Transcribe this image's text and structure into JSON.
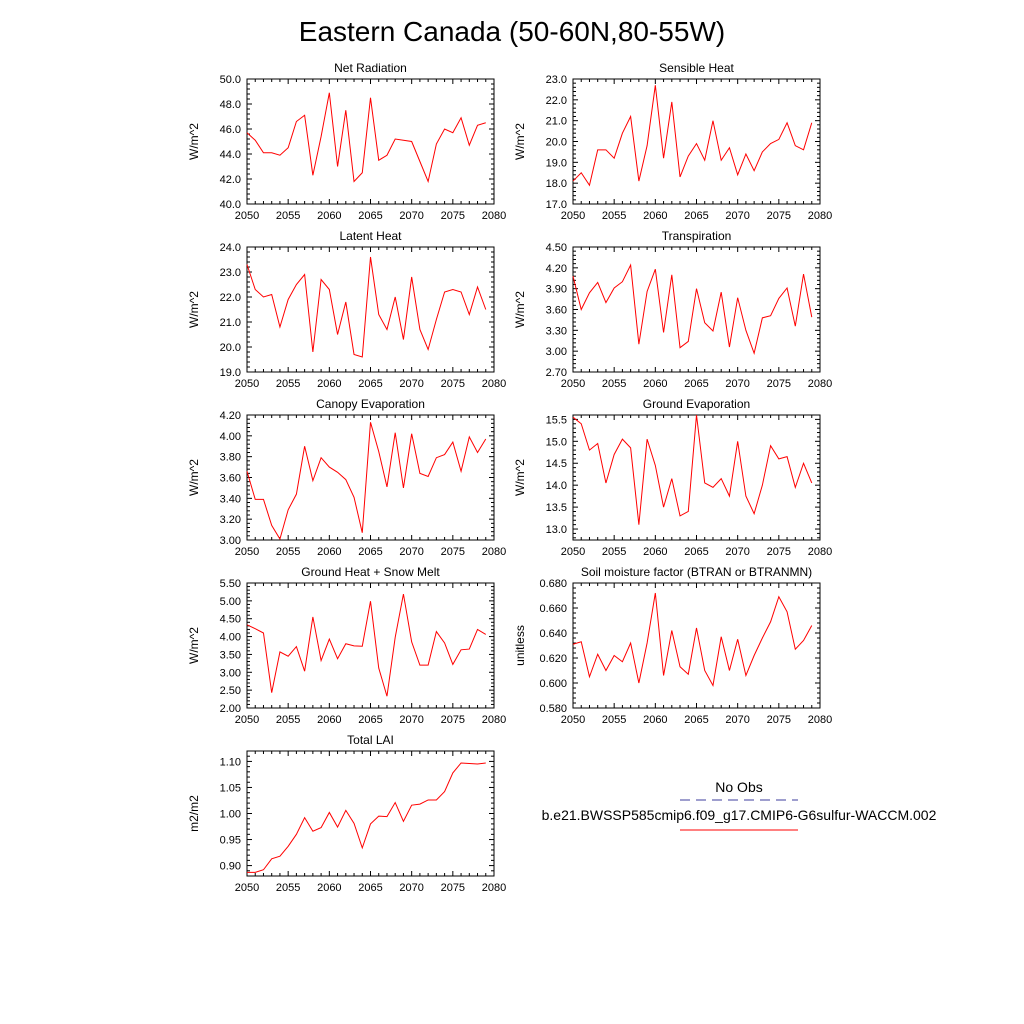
{
  "title": "Eastern Canada (50-60N,80-55W)",
  "legend": {
    "obs_label": "No Obs",
    "case_label": "b.e21.BWSSP585cmip6.f09_g17.CMIP6-G6sulfur-WACCM.002",
    "obs_color": "#3d3d9e",
    "case_color": "#ff0000"
  },
  "chart_data": [
    {
      "type": "line",
      "title": "Net Radiation",
      "ylabel": "W/m^2",
      "xlim": [
        2050,
        2080
      ],
      "ylim": [
        40,
        50
      ],
      "xticks": [
        "2050",
        "2055",
        "2060",
        "2065",
        "2070",
        "2075",
        "2080"
      ],
      "yticks": [
        "40.0",
        "42.0",
        "44.0",
        "46.0",
        "48.0",
        "50.0"
      ],
      "x": [
        2050,
        2051,
        2052,
        2053,
        2054,
        2055,
        2056,
        2057,
        2058,
        2059,
        2060,
        2061,
        2062,
        2063,
        2064,
        2065,
        2066,
        2067,
        2068,
        2069,
        2070,
        2071,
        2072,
        2073,
        2074,
        2075,
        2076,
        2077,
        2078,
        2079
      ],
      "series": [
        {
          "color": "#ff0000",
          "values": [
            45.7,
            45.1,
            44.1,
            44.1,
            43.9,
            44.5,
            46.6,
            47.1,
            42.3,
            45.4,
            48.9,
            43.0,
            47.5,
            41.8,
            42.5,
            48.5,
            43.5,
            43.9,
            45.2,
            45.1,
            45.0,
            43.4,
            41.8,
            44.8,
            46.0,
            45.7,
            46.9,
            44.7,
            46.3,
            46.5
          ]
        }
      ]
    },
    {
      "type": "line",
      "title": "Sensible Heat",
      "ylabel": "W/m^2",
      "xlim": [
        2050,
        2080
      ],
      "ylim": [
        17,
        23
      ],
      "xticks": [
        "2050",
        "2055",
        "2060",
        "2065",
        "2070",
        "2075",
        "2080"
      ],
      "yticks": [
        "17.0",
        "18.0",
        "19.0",
        "20.0",
        "21.0",
        "22.0",
        "23.0"
      ],
      "x": [
        2050,
        2051,
        2052,
        2053,
        2054,
        2055,
        2056,
        2057,
        2058,
        2059,
        2060,
        2061,
        2062,
        2063,
        2064,
        2065,
        2066,
        2067,
        2068,
        2069,
        2070,
        2071,
        2072,
        2073,
        2074,
        2075,
        2076,
        2077,
        2078,
        2079
      ],
      "series": [
        {
          "color": "#ff0000",
          "values": [
            18.1,
            18.5,
            17.9,
            19.6,
            19.6,
            19.2,
            20.4,
            21.2,
            18.1,
            19.8,
            22.7,
            19.2,
            21.9,
            18.3,
            19.3,
            19.9,
            19.1,
            21.0,
            19.1,
            19.7,
            18.4,
            19.4,
            18.6,
            19.5,
            19.9,
            20.1,
            20.9,
            19.8,
            19.6,
            20.9
          ]
        }
      ]
    },
    {
      "type": "line",
      "title": "Latent Heat",
      "ylabel": "W/m^2",
      "xlim": [
        2050,
        2080
      ],
      "ylim": [
        19,
        24
      ],
      "xticks": [
        "2050",
        "2055",
        "2060",
        "2065",
        "2070",
        "2075",
        "2080"
      ],
      "yticks": [
        "19.0",
        "20.0",
        "21.0",
        "22.0",
        "23.0",
        "24.0"
      ],
      "x": [
        2050,
        2051,
        2052,
        2053,
        2054,
        2055,
        2056,
        2057,
        2058,
        2059,
        2060,
        2061,
        2062,
        2063,
        2064,
        2065,
        2066,
        2067,
        2068,
        2069,
        2070,
        2071,
        2072,
        2073,
        2074,
        2075,
        2076,
        2077,
        2078,
        2079
      ],
      "series": [
        {
          "color": "#ff0000",
          "values": [
            23.3,
            22.3,
            22.0,
            22.1,
            20.8,
            21.9,
            22.5,
            22.9,
            19.8,
            22.7,
            22.3,
            20.5,
            21.8,
            19.7,
            19.6,
            23.6,
            21.3,
            20.7,
            22.0,
            20.3,
            22.8,
            20.7,
            19.9,
            21.1,
            22.2,
            22.3,
            22.2,
            21.3,
            22.4,
            21.5
          ]
        }
      ]
    },
    {
      "type": "line",
      "title": "Transpiration",
      "ylabel": "W/m^2",
      "xlim": [
        2050,
        2080
      ],
      "ylim": [
        2.7,
        4.5
      ],
      "xticks": [
        "2050",
        "2055",
        "2060",
        "2065",
        "2070",
        "2075",
        "2080"
      ],
      "yticks": [
        "2.70",
        "3.00",
        "3.30",
        "3.60",
        "3.90",
        "4.20",
        "4.50"
      ],
      "x": [
        2050,
        2051,
        2052,
        2053,
        2054,
        2055,
        2056,
        2057,
        2058,
        2059,
        2060,
        2061,
        2062,
        2063,
        2064,
        2065,
        2066,
        2067,
        2068,
        2069,
        2070,
        2071,
        2072,
        2073,
        2074,
        2075,
        2076,
        2077,
        2078,
        2079
      ],
      "series": [
        {
          "color": "#ff0000",
          "values": [
            4.08,
            3.6,
            3.84,
            3.99,
            3.7,
            3.91,
            4.0,
            4.24,
            3.1,
            3.86,
            4.18,
            3.27,
            4.1,
            3.05,
            3.14,
            3.9,
            3.41,
            3.29,
            3.85,
            3.06,
            3.77,
            3.3,
            2.97,
            3.48,
            3.51,
            3.76,
            3.91,
            3.36,
            4.11,
            3.49
          ]
        }
      ]
    },
    {
      "type": "line",
      "title": "Canopy Evaporation",
      "ylabel": "W/m^2",
      "xlim": [
        2050,
        2080
      ],
      "ylim": [
        3.0,
        4.2
      ],
      "xticks": [
        "2050",
        "2055",
        "2060",
        "2065",
        "2070",
        "2075",
        "2080"
      ],
      "yticks": [
        "3.00",
        "3.20",
        "3.40",
        "3.60",
        "3.80",
        "4.00",
        "4.20"
      ],
      "x": [
        2050,
        2051,
        2052,
        2053,
        2054,
        2055,
        2056,
        2057,
        2058,
        2059,
        2060,
        2061,
        2062,
        2063,
        2064,
        2065,
        2066,
        2067,
        2068,
        2069,
        2070,
        2071,
        2072,
        2073,
        2074,
        2075,
        2076,
        2077,
        2078,
        2079
      ],
      "series": [
        {
          "color": "#ff0000",
          "values": [
            3.66,
            3.39,
            3.39,
            3.14,
            3.01,
            3.29,
            3.44,
            3.9,
            3.57,
            3.79,
            3.7,
            3.65,
            3.58,
            3.41,
            3.07,
            4.13,
            3.85,
            3.51,
            4.03,
            3.5,
            4.02,
            3.64,
            3.61,
            3.79,
            3.82,
            3.94,
            3.66,
            3.99,
            3.84,
            3.97
          ]
        }
      ]
    },
    {
      "type": "line",
      "title": "Ground Evaporation",
      "ylabel": "W/m^2",
      "xlim": [
        2050,
        2080
      ],
      "ylim": [
        12.75,
        15.6
      ],
      "xticks": [
        "2050",
        "2055",
        "2060",
        "2065",
        "2070",
        "2075",
        "2080"
      ],
      "yticks": [
        "13.0",
        "13.5",
        "14.0",
        "14.5",
        "15.0",
        "15.5"
      ],
      "x": [
        2050,
        2051,
        2052,
        2053,
        2054,
        2055,
        2056,
        2057,
        2058,
        2059,
        2060,
        2061,
        2062,
        2063,
        2064,
        2065,
        2066,
        2067,
        2068,
        2069,
        2070,
        2071,
        2072,
        2073,
        2074,
        2075,
        2076,
        2077,
        2078,
        2079
      ],
      "series": [
        {
          "color": "#ff0000",
          "values": [
            15.55,
            15.4,
            14.8,
            14.95,
            14.05,
            14.7,
            15.05,
            14.85,
            13.1,
            15.05,
            14.45,
            13.5,
            14.15,
            13.3,
            13.4,
            15.6,
            14.05,
            13.95,
            14.15,
            13.75,
            15.0,
            13.75,
            13.35,
            14.0,
            14.9,
            14.6,
            14.65,
            13.95,
            14.5,
            14.05
          ]
        }
      ]
    },
    {
      "type": "line",
      "title": "Ground Heat + Snow Melt",
      "ylabel": "W/m^2",
      "xlim": [
        2050,
        2080
      ],
      "ylim": [
        2.0,
        5.5
      ],
      "xticks": [
        "2050",
        "2055",
        "2060",
        "2065",
        "2070",
        "2075",
        "2080"
      ],
      "yticks": [
        "2.00",
        "2.50",
        "3.00",
        "3.50",
        "4.00",
        "4.50",
        "5.00",
        "5.50"
      ],
      "x": [
        2050,
        2051,
        2052,
        2053,
        2054,
        2055,
        2056,
        2057,
        2058,
        2059,
        2060,
        2061,
        2062,
        2063,
        2064,
        2065,
        2066,
        2067,
        2068,
        2069,
        2070,
        2071,
        2072,
        2073,
        2074,
        2075,
        2076,
        2077,
        2078,
        2079
      ],
      "series": [
        {
          "color": "#ff0000",
          "values": [
            4.33,
            4.22,
            4.1,
            2.43,
            3.57,
            3.45,
            3.72,
            3.03,
            4.55,
            3.33,
            3.93,
            3.38,
            3.8,
            3.74,
            3.73,
            4.99,
            3.12,
            2.33,
            3.98,
            5.19,
            3.85,
            3.2,
            3.2,
            4.14,
            3.82,
            3.22,
            3.63,
            3.65,
            4.2,
            4.06
          ]
        }
      ]
    },
    {
      "type": "line",
      "title": "Soil moisture factor (BTRAN or BTRANMN)",
      "ylabel": "unitless",
      "xlim": [
        2050,
        2080
      ],
      "ylim": [
        0.58,
        0.68
      ],
      "xticks": [
        "2050",
        "2055",
        "2060",
        "2065",
        "2070",
        "2075",
        "2080"
      ],
      "yticks": [
        "0.580",
        "0.600",
        "0.620",
        "0.640",
        "0.660",
        "0.680"
      ],
      "x": [
        2050,
        2051,
        2052,
        2053,
        2054,
        2055,
        2056,
        2057,
        2058,
        2059,
        2060,
        2061,
        2062,
        2063,
        2064,
        2065,
        2066,
        2067,
        2068,
        2069,
        2070,
        2071,
        2072,
        2073,
        2074,
        2075,
        2076,
        2077,
        2078,
        2079
      ],
      "series": [
        {
          "color": "#ff0000",
          "values": [
            0.631,
            0.633,
            0.605,
            0.623,
            0.61,
            0.622,
            0.617,
            0.632,
            0.6,
            0.632,
            0.672,
            0.606,
            0.642,
            0.613,
            0.607,
            0.644,
            0.61,
            0.598,
            0.637,
            0.61,
            0.635,
            0.606,
            0.622,
            0.636,
            0.649,
            0.669,
            0.657,
            0.627,
            0.634,
            0.646
          ]
        }
      ]
    },
    {
      "type": "line",
      "title": "Total LAI",
      "ylabel": "m2/m2",
      "xlim": [
        2050,
        2080
      ],
      "ylim": [
        0.88,
        1.12
      ],
      "xticks": [
        "2050",
        "2055",
        "2060",
        "2065",
        "2070",
        "2075",
        "2080"
      ],
      "yticks": [
        "0.90",
        "0.95",
        "1.00",
        "1.05",
        "1.10"
      ],
      "x": [
        2050,
        2051,
        2052,
        2053,
        2054,
        2055,
        2056,
        2057,
        2058,
        2059,
        2060,
        2061,
        2062,
        2063,
        2064,
        2065,
        2066,
        2067,
        2068,
        2069,
        2070,
        2071,
        2072,
        2073,
        2074,
        2075,
        2076,
        2077,
        2078,
        2079
      ],
      "series": [
        {
          "color": "#ff0000",
          "values": [
            0.887,
            0.887,
            0.892,
            0.913,
            0.918,
            0.937,
            0.96,
            0.992,
            0.966,
            0.973,
            1.002,
            0.974,
            1.006,
            0.981,
            0.934,
            0.98,
            0.995,
            0.994,
            1.021,
            0.985,
            1.016,
            1.018,
            1.026,
            1.026,
            1.042,
            1.078,
            1.097,
            1.096,
            1.095,
            1.097
          ]
        }
      ]
    }
  ]
}
